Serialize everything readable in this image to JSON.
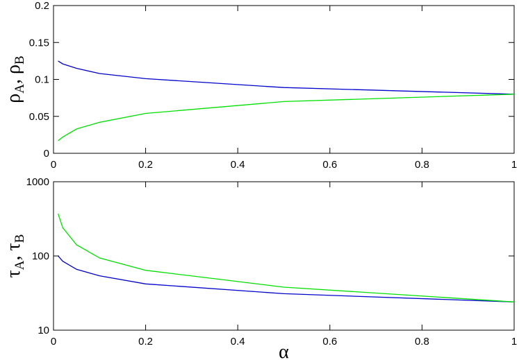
{
  "chart_data": [
    {
      "type": "line",
      "ylabel": [
        "ρ",
        "A",
        ", ρ",
        "B"
      ],
      "x": [
        0.01,
        0.02,
        0.05,
        0.1,
        0.2,
        0.5,
        1
      ],
      "series": [
        {
          "color": "#0000cc",
          "values": [
            0.125,
            0.121,
            0.115,
            0.108,
            0.101,
            0.089,
            0.08
          ]
        },
        {
          "color": "#00e000",
          "values": [
            0.017,
            0.022,
            0.033,
            0.042,
            0.054,
            0.07,
            0.08
          ]
        }
      ],
      "xlim": [
        0,
        1
      ],
      "xticks": [
        0,
        0.2,
        0.4,
        0.6,
        0.8,
        1
      ],
      "ylim": [
        0,
        0.2
      ],
      "yticks": [
        0,
        0.05,
        0.1,
        0.15,
        0.2
      ],
      "yscale": "linear"
    },
    {
      "type": "line",
      "ylabel": [
        "τ",
        "A",
        ", τ",
        "B"
      ],
      "xlabel": "α",
      "x": [
        0.01,
        0.02,
        0.05,
        0.1,
        0.2,
        0.5,
        1
      ],
      "series": [
        {
          "color": "#0000cc",
          "values": [
            100,
            85,
            66,
            54,
            42,
            31,
            24
          ]
        },
        {
          "color": "#00e000",
          "values": [
            371,
            240,
            141,
            94,
            64,
            38,
            24
          ]
        }
      ],
      "xlim": [
        0,
        1
      ],
      "xticks": [
        0,
        0.2,
        0.4,
        0.6,
        0.8,
        1
      ],
      "ylim": [
        10,
        1000
      ],
      "yticks": [
        10,
        100,
        1000
      ],
      "yscale": "log"
    }
  ]
}
